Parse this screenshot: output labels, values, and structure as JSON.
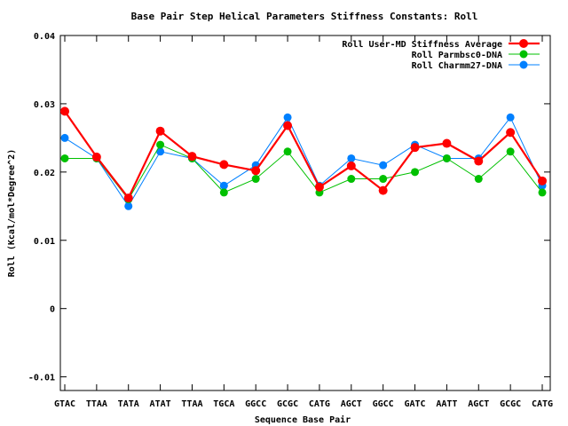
{
  "chart_data": {
    "type": "line",
    "title": "Base Pair Step Helical Parameters Stiffness Constants: Roll",
    "xlabel": "Sequence Base Pair",
    "ylabel": "Roll (Kcal/mol*Degree^2)",
    "ylim": [
      -0.012,
      0.04
    ],
    "yticks": [
      -0.01,
      0,
      0.01,
      0.02,
      0.03,
      0.04
    ],
    "ytick_labels": [
      "-0.01",
      "0",
      "0.01",
      "0.02",
      "0.03",
      "0.04"
    ],
    "categories": [
      "GTAC",
      "TTAA",
      "TATA",
      "ATAT",
      "TTAA",
      "TGCA",
      "GGCC",
      "GCGC",
      "CATG",
      "AGCT",
      "GGCC",
      "GATC",
      "AATT",
      "AGCT",
      "GCGC",
      "CATG"
    ],
    "legend_position": "top-right",
    "grid": false,
    "series": [
      {
        "name": "Roll User-MD Stiffness Average",
        "color": "#ff0000",
        "values": [
          0.0289,
          0.0222,
          0.0162,
          0.026,
          0.0223,
          0.0211,
          0.0202,
          0.0268,
          0.0178,
          0.0209,
          0.0173,
          0.0236,
          0.0242,
          0.0216,
          0.0258,
          0.0187
        ]
      },
      {
        "name": "Roll Parmbsc0-DNA",
        "color": "#00c000",
        "values": [
          0.022,
          0.022,
          0.016,
          0.024,
          0.022,
          0.017,
          0.019,
          0.023,
          0.017,
          0.019,
          0.019,
          0.02,
          0.022,
          0.019,
          0.023,
          0.017
        ]
      },
      {
        "name": "Roll Charmm27-DNA",
        "color": "#0080ff",
        "values": [
          0.025,
          0.022,
          0.015,
          0.023,
          0.022,
          0.018,
          0.021,
          0.028,
          0.018,
          0.022,
          0.021,
          0.024,
          0.022,
          0.022,
          0.028,
          0.018
        ]
      }
    ]
  }
}
